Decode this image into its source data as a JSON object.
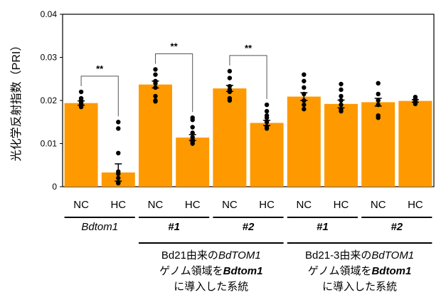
{
  "chart_data": {
    "type": "bar",
    "ylabel": "光化学反射指数（PRI）",
    "ylim": [
      0,
      0.04
    ],
    "yticks": [
      "0",
      "0.01",
      "0.02",
      "0.03",
      "0.04"
    ],
    "grid": false,
    "bar_color": "#ff9900",
    "categories": [
      "NC",
      "HC",
      "NC",
      "HC",
      "NC",
      "HC",
      "NC",
      "HC",
      "NC",
      "HC"
    ],
    "values": [
      0.0194,
      0.0033,
      0.0237,
      0.0114,
      0.0228,
      0.0148,
      0.0209,
      0.0192,
      0.0196,
      0.0199
    ],
    "errors": [
      0.0005,
      0.002,
      0.0008,
      0.0007,
      0.0007,
      0.0006,
      0.0009,
      0.0009,
      0.0009,
      0.0003
    ],
    "points": [
      [
        0.022,
        0.0205,
        0.02,
        0.0195,
        0.019,
        0.0185
      ],
      [
        0.015,
        0.0135,
        0.0078,
        0.0035,
        0.003,
        0.002,
        0.001,
        0.0008
      ],
      [
        0.0272,
        0.026,
        0.0245,
        0.024,
        0.023,
        0.021,
        0.02,
        0.0198
      ],
      [
        0.016,
        0.0155,
        0.0138,
        0.0125,
        0.0115,
        0.011,
        0.0105,
        0.01
      ],
      [
        0.0268,
        0.0252,
        0.0233,
        0.0225,
        0.022,
        0.0205,
        0.02
      ],
      [
        0.019,
        0.0175,
        0.0165,
        0.016,
        0.015,
        0.014,
        0.0135
      ],
      [
        0.026,
        0.0245,
        0.023,
        0.0215,
        0.02,
        0.019,
        0.018
      ],
      [
        0.0238,
        0.0225,
        0.021,
        0.02,
        0.019,
        0.018,
        0.0175
      ],
      [
        0.024,
        0.0215,
        0.02,
        0.019,
        0.0165,
        0.016
      ],
      [
        0.0208,
        0.0203,
        0.02,
        0.0195,
        0.0192
      ]
    ],
    "significance": [
      {
        "from": 0,
        "to": 1,
        "label": "**"
      },
      {
        "from": 2,
        "to": 3,
        "label": "**"
      },
      {
        "from": 4,
        "to": 5,
        "label": "**"
      }
    ],
    "pair_labels": [
      "Bdtom1",
      "#1",
      "#2",
      "#1",
      "#2"
    ],
    "group_labels": [
      {
        "lines": [
          "Bd21由来の",
          "BdTOM1",
          "ゲノム領域を",
          "Bdtom1",
          "に導入した系統"
        ]
      },
      {
        "lines": [
          "Bd21-3由来の",
          "BdTOM1",
          "ゲノム領域を",
          "Bdtom1",
          "に導入した系統"
        ]
      }
    ]
  }
}
